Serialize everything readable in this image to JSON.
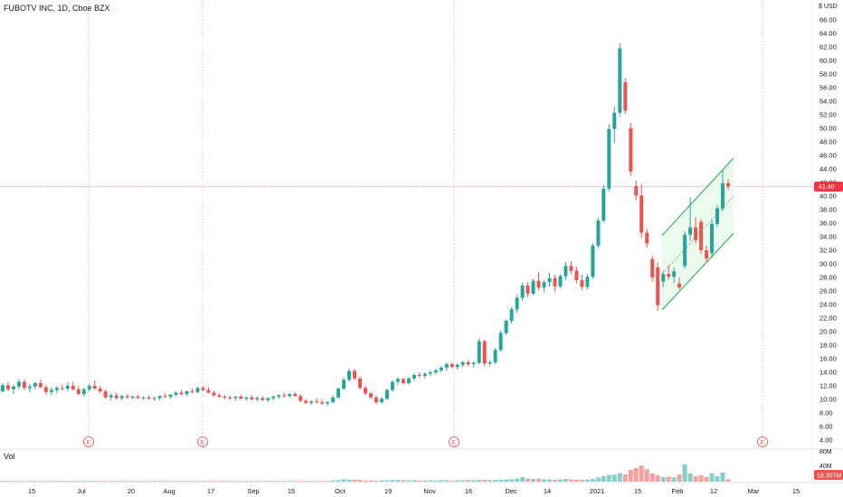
{
  "chart_data": {
    "type": "candlestick",
    "title": "FUBOTV INC, 1D, Cboe BZX",
    "currency_label": "$ USD",
    "last_price_label": "41.40",
    "last_price": 41.4,
    "volume_label": "Vol",
    "volume_value_label": "18.307M",
    "y_ticks": [
      "66.00",
      "64.00",
      "62.00",
      "60.00",
      "58.00",
      "56.00",
      "54.00",
      "52.00",
      "50.00",
      "48.00",
      "46.00",
      "44.00",
      "42.00",
      "40.00",
      "38.00",
      "36.00",
      "34.00",
      "32.00",
      "30.00",
      "28.00",
      "26.00",
      "24.00",
      "22.00",
      "20.00",
      "18.00",
      "16.00",
      "14.00",
      "12.00",
      "10.00",
      "8.00",
      "6.00",
      "4.00"
    ],
    "volume_ticks": [
      "80M",
      "40M"
    ],
    "x_ticks": [
      "15",
      "Jul",
      "20",
      "Aug",
      "17",
      "Sep",
      "15",
      "Oct",
      "19",
      "Nov",
      "16",
      "Dec",
      "14",
      "2021",
      "15",
      "Feb",
      "12",
      "Mar",
      "15"
    ],
    "earnings_marker": "E",
    "ylim": [
      3,
      67
    ],
    "grid": false,
    "colors": {
      "up": "#26a69a",
      "down": "#ef5350",
      "channel_fill": "#e8f9e9",
      "channel_line": "#1eaa4a",
      "crosshair": "#f23645",
      "earnings": "#e8474c"
    },
    "candles": [
      [
        11.2,
        12.4,
        11,
        12.1
      ],
      [
        12.1,
        12.6,
        11.2,
        11.5
      ],
      [
        11.5,
        12.2,
        10.8,
        11.9
      ],
      [
        11.9,
        13,
        11.5,
        12.6
      ],
      [
        12.6,
        13,
        11.4,
        11.7
      ],
      [
        11.7,
        12.3,
        11,
        11.9
      ],
      [
        11.9,
        12.6,
        11.5,
        12.4
      ],
      [
        12.4,
        13,
        11.7,
        11.8
      ],
      [
        11.8,
        12.1,
        10.7,
        11.1
      ],
      [
        11.1,
        11.8,
        10.6,
        11.4
      ],
      [
        11.4,
        12,
        10.9,
        11.7
      ],
      [
        11.7,
        12.2,
        11.3,
        11.6
      ],
      [
        11.6,
        12.5,
        11.2,
        12
      ],
      [
        12,
        12.6,
        11.3,
        11.5
      ],
      [
        11.5,
        12,
        10.6,
        10.8
      ],
      [
        10.8,
        11.7,
        10.5,
        11.5
      ],
      [
        11.5,
        12.3,
        11.2,
        12
      ],
      [
        12,
        12.8,
        11.4,
        11.6
      ],
      [
        11.6,
        12,
        10.9,
        11.2
      ],
      [
        11.2,
        11.5,
        10.1,
        10.3
      ],
      [
        10.3,
        10.9,
        9.8,
        10.6
      ],
      [
        10.6,
        11,
        10,
        10.2
      ],
      [
        10.2,
        10.7,
        9.9,
        10.5
      ],
      [
        10.5,
        10.8,
        10.1,
        10.3
      ],
      [
        10.3,
        10.6,
        10,
        10.4
      ],
      [
        10.4,
        10.7,
        10.1,
        10.2
      ],
      [
        10.2,
        10.5,
        9.9,
        10.3
      ],
      [
        10.3,
        10.6,
        10,
        10.1
      ],
      [
        10.1,
        10.4,
        9.8,
        10.2
      ],
      [
        10.2,
        10.6,
        9.9,
        10.5
      ],
      [
        10.5,
        10.9,
        10.2,
        10.4
      ],
      [
        10.4,
        10.8,
        10.1,
        10.7
      ],
      [
        10.7,
        11.2,
        10.5,
        11
      ],
      [
        11,
        11.4,
        10.6,
        10.8
      ],
      [
        10.8,
        11.3,
        10.5,
        11.2
      ],
      [
        11.2,
        11.6,
        10.9,
        11.1
      ],
      [
        11.1,
        11.9,
        10.9,
        11.7
      ],
      [
        11.7,
        12,
        11.2,
        11.4
      ],
      [
        11.4,
        11.8,
        10.9,
        11
      ],
      [
        11,
        11.3,
        10.4,
        10.6
      ],
      [
        10.6,
        10.9,
        10.2,
        10.4
      ],
      [
        10.4,
        10.7,
        10,
        10.3
      ],
      [
        10.3,
        10.6,
        9.9,
        10.2
      ],
      [
        10.2,
        10.5,
        9.8,
        10.4
      ],
      [
        10.4,
        10.7,
        10,
        10.1
      ],
      [
        10.1,
        10.4,
        9.8,
        10.3
      ],
      [
        10.3,
        10.6,
        9.9,
        10
      ],
      [
        10,
        10.4,
        9.7,
        10.2
      ],
      [
        10.2,
        10.5,
        9.8,
        9.9
      ],
      [
        9.9,
        10.3,
        9.6,
        10.2
      ],
      [
        10.2,
        10.6,
        9.9,
        10.4
      ],
      [
        10.4,
        10.8,
        10.1,
        10.6
      ],
      [
        10.6,
        11,
        10.3,
        10.5
      ],
      [
        10.5,
        10.9,
        10.2,
        10.8
      ],
      [
        10.8,
        11.1,
        10.4,
        10.5
      ],
      [
        10.5,
        10.8,
        9.6,
        9.8
      ],
      [
        9.8,
        10.1,
        9.3,
        9.5
      ],
      [
        9.5,
        9.9,
        9.2,
        9.7
      ],
      [
        9.7,
        10.2,
        9.4,
        9.6
      ],
      [
        9.6,
        10,
        9.2,
        9.4
      ],
      [
        9.4,
        9.8,
        9,
        9.6
      ],
      [
        9.6,
        10.6,
        9.4,
        10.3
      ],
      [
        10.3,
        11.8,
        10.1,
        11.6
      ],
      [
        11.6,
        13.2,
        11.4,
        12.9
      ],
      [
        12.9,
        14.6,
        12.6,
        14.2
      ],
      [
        14.2,
        14.5,
        12.8,
        13.1
      ],
      [
        13.1,
        13.4,
        11.4,
        11.7
      ],
      [
        11.7,
        12,
        10.6,
        10.9
      ],
      [
        10.9,
        11.1,
        10,
        10.3
      ],
      [
        10.3,
        10.6,
        9.3,
        9.6
      ],
      [
        9.6,
        10.4,
        9.4,
        10.1
      ],
      [
        10.1,
        11.6,
        9.9,
        11.4
      ],
      [
        11.4,
        12.8,
        11.1,
        12.6
      ],
      [
        12.6,
        13.3,
        12.1,
        13
      ],
      [
        13,
        13.2,
        12.2,
        12.4
      ],
      [
        12.4,
        13.3,
        12.2,
        13.1
      ],
      [
        13.1,
        13.8,
        12.8,
        13.6
      ],
      [
        13.6,
        14,
        13.2,
        13.5
      ],
      [
        13.5,
        14,
        13.1,
        13.8
      ],
      [
        13.8,
        14.3,
        13.4,
        14
      ],
      [
        14,
        14.5,
        13.7,
        14.3
      ],
      [
        14.3,
        14.9,
        14,
        14.7
      ],
      [
        14.7,
        15.4,
        14.2,
        15.2
      ],
      [
        15.2,
        15.5,
        14.6,
        14.8
      ],
      [
        14.8,
        15.3,
        14.4,
        15.1
      ],
      [
        15.1,
        15.7,
        14.8,
        15.5
      ],
      [
        15.5,
        15.8,
        14.9,
        15.2
      ],
      [
        15.2,
        15.6,
        14.7,
        15.4
      ],
      [
        15.4,
        19,
        15.2,
        18.6
      ],
      [
        18.6,
        18.8,
        14.9,
        15.3
      ],
      [
        15.3,
        15.8,
        14.9,
        15.5
      ],
      [
        15.5,
        17.6,
        15.2,
        17.3
      ],
      [
        17.3,
        20.2,
        17,
        19.8
      ],
      [
        19.8,
        21.8,
        19.5,
        21.6
      ],
      [
        21.6,
        23.6,
        21.2,
        23.3
      ],
      [
        23.3,
        25.4,
        22.8,
        25
      ],
      [
        25,
        27.2,
        24.6,
        26.8
      ],
      [
        26.8,
        27.3,
        25.1,
        25.6
      ],
      [
        25.6,
        27.8,
        25.4,
        27.5
      ],
      [
        27.5,
        28.8,
        26.1,
        26.5
      ],
      [
        26.5,
        27.6,
        25.8,
        27.3
      ],
      [
        27.3,
        28.7,
        26.6,
        27.9
      ],
      [
        27.9,
        28.4,
        25.9,
        26.7
      ],
      [
        26.7,
        28.5,
        26.4,
        28.2
      ],
      [
        28.2,
        30.3,
        27.7,
        29.7
      ],
      [
        29.7,
        30.4,
        28.5,
        29
      ],
      [
        29,
        29.6,
        27.1,
        27.6
      ],
      [
        27.6,
        28.4,
        26.1,
        26.6
      ],
      [
        26.6,
        28.5,
        26.2,
        28.1
      ],
      [
        28.1,
        33.1,
        27.8,
        32.7
      ],
      [
        32.7,
        36.8,
        32.3,
        36.4
      ],
      [
        36.4,
        41.6,
        36.1,
        41.1
      ],
      [
        41.1,
        50.6,
        40.7,
        49.9
      ],
      [
        49.9,
        53.2,
        47.8,
        52.3
      ],
      [
        52.3,
        62.6,
        51.7,
        61.8
      ],
      [
        56.8,
        57.4,
        52.1,
        52.6
      ],
      [
        50,
        50.8,
        43,
        43.6
      ],
      [
        41.5,
        42.3,
        39.4,
        40.1
      ],
      [
        40.1,
        41.8,
        33.8,
        34.6
      ],
      [
        34.6,
        35.2,
        32.4,
        33
      ],
      [
        30.7,
        31.2,
        27.4,
        28
      ],
      [
        29.5,
        30.2,
        23.1,
        23.9
      ],
      [
        27.4,
        29,
        26.6,
        28.5
      ],
      [
        28.5,
        29.8,
        27.7,
        28.1
      ],
      [
        28.1,
        29.4,
        27.2,
        28.9
      ],
      [
        27.1,
        28,
        26.2,
        26.5
      ],
      [
        29.7,
        34.8,
        29.3,
        34.3
      ],
      [
        34.3,
        39.8,
        33.5,
        35.4
      ],
      [
        35.4,
        36.9,
        33,
        33.5
      ],
      [
        36.2,
        36.6,
        31.5,
        32
      ],
      [
        32,
        32.7,
        30.3,
        30.8
      ],
      [
        31.6,
        36.5,
        30.9,
        35.9
      ],
      [
        35.9,
        38.7,
        35.4,
        38.2
      ],
      [
        38.2,
        43.8,
        37.8,
        41.9
      ],
      [
        41.9,
        42.5,
        40.9,
        41.4
      ]
    ],
    "volumes": [
      0.15,
      0.15,
      0.15,
      0.15,
      0.15,
      0.15,
      0.15,
      0.15,
      0.15,
      0.15,
      0.15,
      0.15,
      0.15,
      0.15,
      0.15,
      0.15,
      0.15,
      0.15,
      0.15,
      0.15,
      0.15,
      0.15,
      0.15,
      0.15,
      0.15,
      0.15,
      0.15,
      0.15,
      0.15,
      0.15,
      0.15,
      0.15,
      0.15,
      0.15,
      0.15,
      0.15,
      0.15,
      0.15,
      0.15,
      0.15,
      0.15,
      0.15,
      0.15,
      0.15,
      0.15,
      0.15,
      0.15,
      0.15,
      0.15,
      0.15,
      0.15,
      0.15,
      0.15,
      0.15,
      0.15,
      0.15,
      0.15,
      0.15,
      0.15,
      0.15,
      0.15,
      2.5,
      3.2,
      5,
      4.1,
      3.6,
      3.4,
      2.4,
      2.5,
      2.1,
      2.6,
      2.3,
      3.1,
      3.6,
      2.7,
      2.6,
      3,
      2.2,
      2.3,
      2.5,
      2.1,
      3.1,
      2.6,
      2.2,
      2.5,
      2.8,
      3.3,
      3,
      3.6,
      3.8,
      2.9,
      3.4,
      4.2,
      4.4,
      5.1,
      6.3,
      9,
      6,
      5.4,
      6.1,
      4.8,
      4.4,
      3.6,
      4.6,
      5.4,
      4.3,
      3.9,
      3.6,
      4.3,
      5.6,
      8.4,
      11.1,
      13.6,
      14.2,
      17.2,
      14.6,
      23.8,
      27.2,
      32.6,
      25.2,
      16.4,
      12.6,
      9.4,
      10.1,
      8.6,
      14.3,
      34.7,
      16.4,
      11.4,
      12.6,
      9.6,
      16.9,
      11.1,
      18.3,
      4.6
    ],
    "channel": {
      "upper": [
        [
          70,
          34.2
        ],
        [
          86,
          45.6
        ]
      ],
      "lower": [
        [
          70,
          23.2
        ],
        [
          86,
          34.5
        ]
      ],
      "mid": [
        [
          70,
          28.5
        ],
        [
          86,
          40
        ]
      ],
      "x_start_index": 121
    }
  }
}
